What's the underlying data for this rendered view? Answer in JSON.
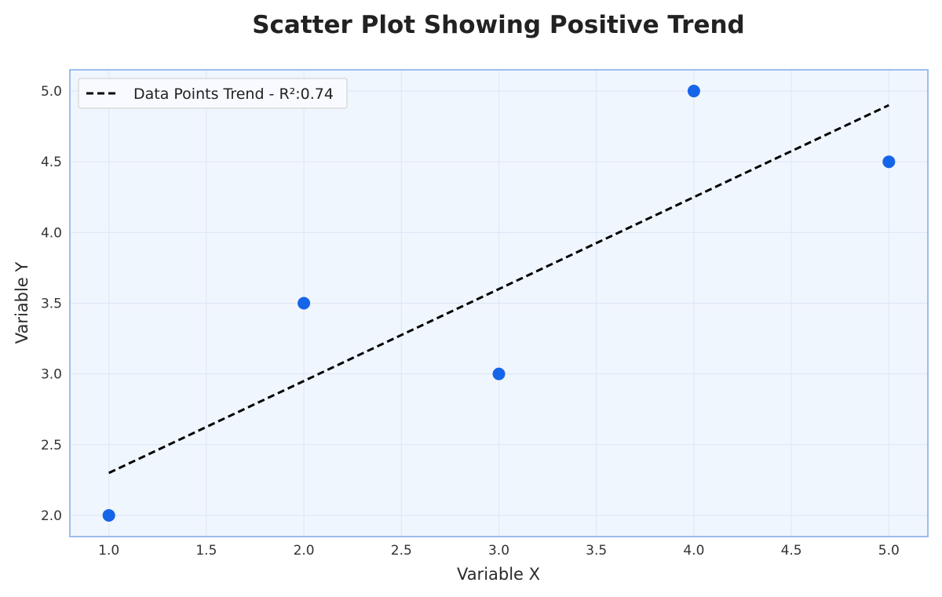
{
  "chart_data": {
    "type": "scatter",
    "title": "Scatter Plot Showing Positive Trend",
    "xlabel": "Variable X",
    "ylabel": "Variable Y",
    "xlim": [
      0.8,
      5.2
    ],
    "ylim": [
      1.85,
      5.15
    ],
    "x_ticks": [
      "1.0",
      "1.5",
      "2.0",
      "2.5",
      "3.0",
      "3.5",
      "4.0",
      "4.5",
      "5.0"
    ],
    "y_ticks": [
      "2.0",
      "2.5",
      "3.0",
      "3.5",
      "4.0",
      "4.5",
      "5.0"
    ],
    "grid": true,
    "legend_position": "top-left",
    "series": [
      {
        "kind": "scatter",
        "x": [
          1.0,
          2.0,
          3.0,
          4.0,
          5.0
        ],
        "y": [
          2.0,
          3.5,
          3.0,
          5.0,
          4.5
        ],
        "color": "#1565e8"
      },
      {
        "kind": "line",
        "name": "Data Points Trend - R²:0.74",
        "x": [
          1.0,
          5.0
        ],
        "y": [
          2.3,
          4.9
        ],
        "style": "dashed",
        "color": "#000000"
      }
    ],
    "colors": {
      "plot_background": "#f0f6fd",
      "plot_border": "#9dbdee",
      "grid": "#dde6f6",
      "points": "#1565e8",
      "trend": "#000000"
    }
  }
}
